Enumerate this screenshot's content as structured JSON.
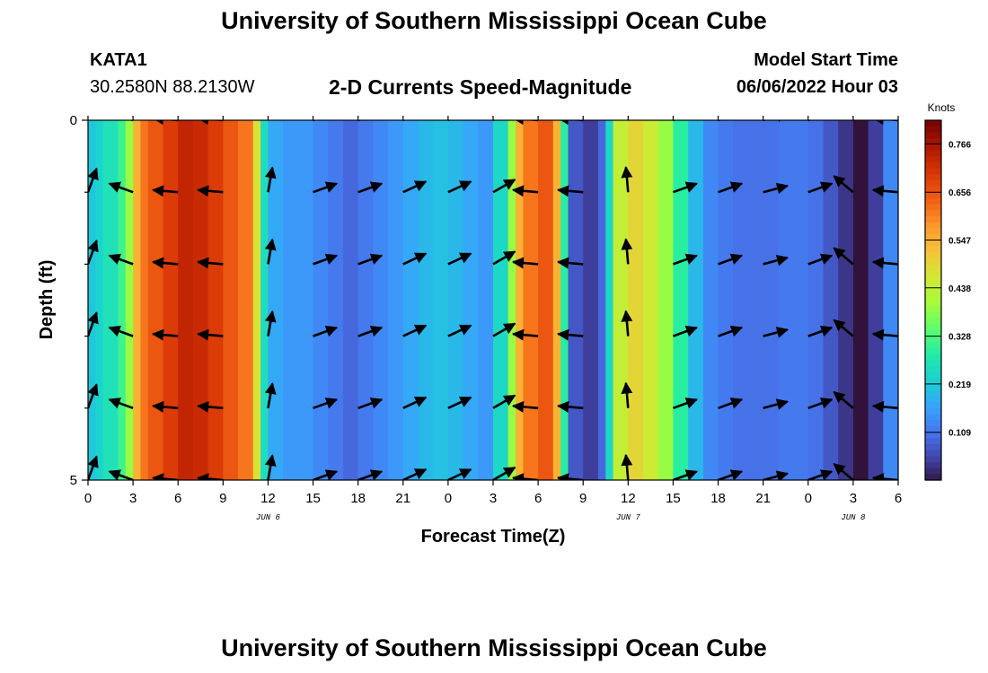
{
  "header": {
    "title": "University of Southern Mississippi Ocean Cube",
    "station_id": "KATA1",
    "coordinates": "30.2580N  88.2130W",
    "subtitle": "2-D Currents Speed-Magnitude",
    "model_start_label": "Model Start Time",
    "model_start_value": "06/06/2022 Hour 03"
  },
  "footer": {
    "title": "University of Southern Mississippi Ocean Cube"
  },
  "chart_data": {
    "type": "heatmap",
    "title": "2-D Currents Speed-Magnitude",
    "xlabel": "Forecast Time(Z)",
    "ylabel": "Depth (ft)",
    "x_hours": [
      0,
      54
    ],
    "ylim": [
      0,
      5
    ],
    "x_ticks": [
      {
        "h": 0,
        "label": "0"
      },
      {
        "h": 3,
        "label": "3"
      },
      {
        "h": 6,
        "label": "6"
      },
      {
        "h": 9,
        "label": "9"
      },
      {
        "h": 12,
        "label": "12"
      },
      {
        "h": 15,
        "label": "15"
      },
      {
        "h": 18,
        "label": "18"
      },
      {
        "h": 21,
        "label": "21"
      },
      {
        "h": 24,
        "label": "0"
      },
      {
        "h": 27,
        "label": "3"
      },
      {
        "h": 30,
        "label": "6"
      },
      {
        "h": 33,
        "label": "9"
      },
      {
        "h": 36,
        "label": "12"
      },
      {
        "h": 39,
        "label": "15"
      },
      {
        "h": 42,
        "label": "18"
      },
      {
        "h": 45,
        "label": "21"
      },
      {
        "h": 48,
        "label": "0"
      },
      {
        "h": 51,
        "label": "3"
      },
      {
        "h": 54,
        "label": "6"
      }
    ],
    "date_labels": [
      {
        "h": 12,
        "label": "JUN 6"
      },
      {
        "h": 36,
        "label": "JUN 7"
      },
      {
        "h": 51,
        "label": "JUN 8"
      }
    ],
    "y_ticks": [
      {
        "v": 0,
        "label": "0"
      },
      {
        "v": 5,
        "label": "5"
      }
    ],
    "colorbar": {
      "title": "Knots",
      "min": 0.0,
      "max": 0.82,
      "ticks": [
        0.766,
        0.656,
        0.547,
        0.438,
        0.328,
        0.219,
        0.109
      ]
    },
    "speed_segments": [
      [
        0,
        0.5,
        0.22
      ],
      [
        0.5,
        1,
        0.24
      ],
      [
        1,
        2,
        0.27
      ],
      [
        2,
        2.5,
        0.32
      ],
      [
        2.5,
        3,
        0.4
      ],
      [
        3,
        3.5,
        0.55
      ],
      [
        3.5,
        4,
        0.62
      ],
      [
        4,
        5,
        0.66
      ],
      [
        5,
        6,
        0.7
      ],
      [
        6,
        7,
        0.74
      ],
      [
        7,
        8,
        0.73
      ],
      [
        8,
        9,
        0.7
      ],
      [
        9,
        10,
        0.66
      ],
      [
        10,
        11,
        0.62
      ],
      [
        11,
        11.5,
        0.48
      ],
      [
        11.5,
        12,
        0.26
      ],
      [
        12,
        13,
        0.18
      ],
      [
        13,
        14,
        0.16
      ],
      [
        14,
        15,
        0.16
      ],
      [
        15,
        16,
        0.14
      ],
      [
        16,
        17,
        0.12
      ],
      [
        17,
        18,
        0.1
      ],
      [
        18,
        19,
        0.12
      ],
      [
        19,
        20,
        0.14
      ],
      [
        20,
        21,
        0.16
      ],
      [
        21,
        22,
        0.18
      ],
      [
        22,
        23,
        0.2
      ],
      [
        23,
        24,
        0.21
      ],
      [
        24,
        25,
        0.2
      ],
      [
        25,
        26,
        0.18
      ],
      [
        26,
        27,
        0.16
      ],
      [
        27,
        28,
        0.25
      ],
      [
        28,
        28.5,
        0.4
      ],
      [
        28.5,
        29,
        0.55
      ],
      [
        29,
        30,
        0.62
      ],
      [
        30,
        31,
        0.66
      ],
      [
        31,
        31.5,
        0.55
      ],
      [
        31.5,
        32,
        0.3
      ],
      [
        32,
        33,
        0.08
      ],
      [
        33,
        34,
        0.05
      ],
      [
        34,
        34.5,
        0.1
      ],
      [
        34.5,
        35,
        0.25
      ],
      [
        35,
        36,
        0.45
      ],
      [
        36,
        37,
        0.5
      ],
      [
        37,
        38,
        0.46
      ],
      [
        38,
        39,
        0.4
      ],
      [
        39,
        40,
        0.3
      ],
      [
        40,
        41,
        0.2
      ],
      [
        41,
        42,
        0.14
      ],
      [
        42,
        43,
        0.12
      ],
      [
        43,
        44,
        0.11
      ],
      [
        44,
        45,
        0.11
      ],
      [
        45,
        46,
        0.11
      ],
      [
        46,
        47,
        0.12
      ],
      [
        47,
        48,
        0.12
      ],
      [
        48,
        49,
        0.11
      ],
      [
        49,
        50,
        0.08
      ],
      [
        50,
        51,
        0.04
      ],
      [
        51,
        52,
        0.0
      ],
      [
        52,
        53,
        0.05
      ],
      [
        53,
        54,
        0.14
      ]
    ],
    "vector_times": [
      0,
      3,
      6,
      9,
      12,
      15,
      18,
      21,
      24,
      27,
      30,
      33,
      36,
      39,
      42,
      45,
      48,
      51,
      54
    ],
    "vector_depths": [
      0,
      1,
      2,
      3,
      4,
      5
    ],
    "vector_directions_deg": [
      70,
      160,
      175,
      175,
      80,
      20,
      20,
      25,
      25,
      30,
      175,
      175,
      95,
      20,
      20,
      15,
      20,
      140,
      175
    ]
  }
}
